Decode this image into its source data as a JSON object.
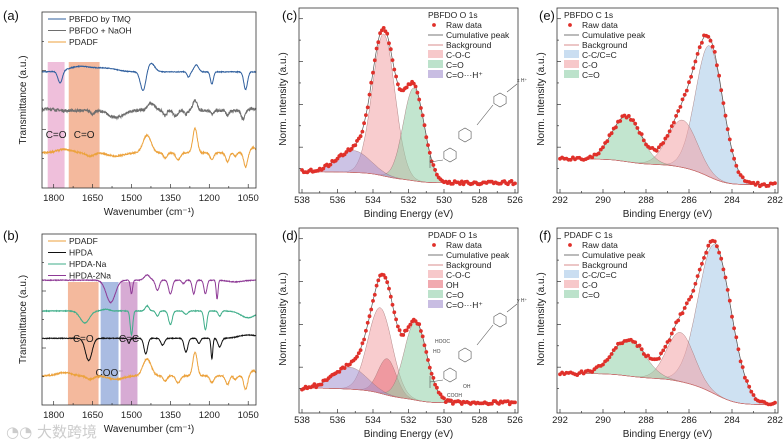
{
  "watermark": "大数跨境",
  "chart_data": [
    {
      "panel_label": "(a)",
      "type": "line",
      "xlabel": "Wavenumber (cm⁻¹)",
      "ylabel": "Transmittance (a.u.)",
      "xlim": [
        1845,
        1020
      ],
      "xticks": [
        1800,
        1650,
        1500,
        1350,
        1200,
        1050
      ],
      "ylim": [
        0,
        1
      ],
      "legend": "top-left",
      "bands": [
        {
          "label": "C=O",
          "from": 1823,
          "to": 1758,
          "color": "#e9a9cf"
        },
        {
          "label": "C=O",
          "from": 1742,
          "to": 1623,
          "color": "#f0a27c"
        }
      ],
      "series": [
        {
          "name": "PBFDO by TMQ",
          "color": "#2f5f9e",
          "baseline": 0.66,
          "noise": 0.002,
          "features": [
            [
              1775,
              0.07,
              12
            ],
            [
              1700,
              -0.03,
              60
            ],
            [
              1600,
              -0.02,
              60
            ],
            [
              1455,
              0.11,
              15
            ],
            [
              1425,
              -0.05,
              20
            ],
            [
              1280,
              0.03,
              8
            ],
            [
              1250,
              -0.04,
              12
            ],
            [
              1190,
              0.07,
              8
            ],
            [
              1060,
              0.1,
              10
            ]
          ]
        },
        {
          "name": "PBFDO + NaOH",
          "color": "#6e6e6e",
          "baseline": 0.44,
          "noise": 0.008,
          "features": [
            [
              1820,
              -0.01,
              30
            ],
            [
              1650,
              0.02,
              10
            ],
            [
              1560,
              0.04,
              40
            ],
            [
              1425,
              -0.04,
              20
            ],
            [
              1370,
              0.03,
              8
            ],
            [
              1330,
              0.03,
              12
            ],
            [
              1290,
              0.02,
              10
            ],
            [
              1255,
              -0.06,
              12
            ],
            [
              1190,
              0.02,
              8
            ],
            [
              1130,
              0.03,
              8
            ],
            [
              1070,
              0.05,
              10
            ],
            [
              1030,
              -0.01,
              20
            ]
          ]
        },
        {
          "name": "PDADF",
          "color": "#eca23c",
          "baseline": 0.2,
          "noise": 0.004,
          "features": [
            [
              1760,
              -0.02,
              40
            ],
            [
              1660,
              0.02,
              20
            ],
            [
              1560,
              0.02,
              40
            ],
            [
              1440,
              -0.1,
              22
            ],
            [
              1370,
              0.03,
              10
            ],
            [
              1320,
              0.04,
              12
            ],
            [
              1255,
              -0.14,
              12
            ],
            [
              1190,
              0.04,
              10
            ],
            [
              1130,
              0.05,
              10
            ],
            [
              1100,
              0.02,
              8
            ],
            [
              1060,
              0.08,
              10
            ],
            [
              1030,
              -0.03,
              15
            ]
          ]
        }
      ]
    },
    {
      "panel_label": "(b)",
      "type": "line",
      "xlabel": "Wavenumber (cm⁻¹)",
      "ylabel": "Transmittance (a.u.)",
      "xlim": [
        1845,
        1020
      ],
      "xticks": [
        1800,
        1650,
        1500,
        1350,
        1200,
        1050
      ],
      "ylim": [
        0,
        1
      ],
      "legend": "top-left",
      "bands": [
        {
          "label": "C=O",
          "from": 1745,
          "to": 1627,
          "color": "#f0a27c"
        },
        {
          "label": "COO⁻",
          "from": 1619,
          "to": 1550,
          "color": "#8ea5d8"
        },
        {
          "label": "C=C",
          "from": 1542,
          "to": 1477,
          "color": "#c98fc5"
        }
      ],
      "series": [
        {
          "name": "PDADF",
          "color": "#eca23c",
          "baseline": 0.17,
          "noise": 0.004,
          "features": [
            [
              1760,
              -0.02,
              40
            ],
            [
              1660,
              0.02,
              20
            ],
            [
              1560,
              0.02,
              40
            ],
            [
              1440,
              -0.1,
              22
            ],
            [
              1370,
              0.03,
              10
            ],
            [
              1320,
              0.04,
              12
            ],
            [
              1255,
              -0.14,
              12
            ],
            [
              1190,
              0.04,
              10
            ],
            [
              1130,
              0.05,
              10
            ],
            [
              1100,
              0.02,
              8
            ],
            [
              1060,
              0.08,
              10
            ],
            [
              1030,
              -0.03,
              15
            ]
          ]
        },
        {
          "name": "HPDA",
          "color": "#111111",
          "baseline": 0.39,
          "noise": 0.002,
          "features": [
            [
              1665,
              0.13,
              18
            ],
            [
              1510,
              0.03,
              6
            ],
            [
              1445,
              0.09,
              10
            ],
            [
              1380,
              0.04,
              10
            ],
            [
              1290,
              0.08,
              10
            ],
            [
              1240,
              0.03,
              8
            ],
            [
              1190,
              0.12,
              5
            ],
            [
              1160,
              0.05,
              10
            ],
            [
              1050,
              -0.02,
              50
            ]
          ]
        },
        {
          "name": "HPDA-Na",
          "color": "#3fae8a",
          "baseline": 0.55,
          "noise": 0.002,
          "features": [
            [
              1680,
              0.07,
              25
            ],
            [
              1600,
              -0.01,
              20
            ],
            [
              1500,
              0.14,
              7
            ],
            [
              1440,
              -0.03,
              10
            ],
            [
              1400,
              0.03,
              8
            ],
            [
              1350,
              0.08,
              10
            ],
            [
              1290,
              0.02,
              10
            ],
            [
              1215,
              0.11,
              8
            ],
            [
              1160,
              0.03,
              8
            ],
            [
              1050,
              0.04,
              40
            ]
          ]
        },
        {
          "name": "HPDA-2Na",
          "color": "#8e3a96",
          "baseline": 0.73,
          "noise": 0.002,
          "features": [
            [
              1580,
              0.13,
              25
            ],
            [
              1500,
              0.08,
              6
            ],
            [
              1440,
              -0.03,
              15
            ],
            [
              1400,
              0.06,
              10
            ],
            [
              1350,
              0.08,
              10
            ],
            [
              1300,
              0.02,
              8
            ],
            [
              1260,
              0.08,
              8
            ],
            [
              1215,
              0.08,
              8
            ],
            [
              1170,
              0.11,
              5
            ],
            [
              1100,
              0.01,
              40
            ]
          ]
        }
      ]
    },
    {
      "panel_label": "(c)",
      "type": "area",
      "title": "PBFDO O 1s",
      "xlabel": "Binding Energy (eV)",
      "ylabel": "Norm. Intensity (a.u.)",
      "xlim": [
        538,
        526
      ],
      "xticks": [
        538,
        536,
        534,
        532,
        530,
        528,
        526
      ],
      "ylim": [
        0,
        1
      ],
      "legend": "top-right",
      "raw_label": "Raw data",
      "cumulative_label": "Cumulative peak",
      "background_label": "Background",
      "background": {
        "low_be": 0.04,
        "high_be": 0.1
      },
      "components": [
        {
          "name": "C-O-C",
          "center": 533.4,
          "fwhm": 1.5,
          "height": 0.78,
          "color": "#f2a3a6"
        },
        {
          "name": "C=O",
          "center": 531.7,
          "fwhm": 1.4,
          "height": 0.51,
          "color": "#8fcfa8"
        },
        {
          "name": "C=O···H⁺",
          "center": 535.1,
          "fwhm": 2.2,
          "height": 0.12,
          "color": "#a391cf"
        }
      ],
      "structure_labels": [
        "x H⁺"
      ]
    },
    {
      "panel_label": "(d)",
      "type": "area",
      "title": "PDADF O 1s",
      "xlabel": "Binding Energy (eV)",
      "ylabel": "Norm. Intensity (a.u.)",
      "xlim": [
        538,
        526
      ],
      "xticks": [
        538,
        536,
        534,
        532,
        530,
        528,
        526
      ],
      "ylim": [
        0,
        1
      ],
      "legend": "top-right",
      "raw_label": "Raw data",
      "cumulative_label": "Cumulative peak",
      "background_label": "Background",
      "background": {
        "low_be": 0.04,
        "high_be": 0.12
      },
      "components": [
        {
          "name": "C-O-C",
          "center": 533.6,
          "fwhm": 1.6,
          "height": 0.47,
          "color": "#f2a3a6"
        },
        {
          "name": "OH",
          "center": 533.2,
          "fwhm": 1.2,
          "height": 0.2,
          "color": "#e8707a"
        },
        {
          "name": "C=O",
          "center": 531.6,
          "fwhm": 1.5,
          "height": 0.43,
          "color": "#8fcfa8"
        },
        {
          "name": "C=O···H⁺",
          "center": 535.3,
          "fwhm": 2.2,
          "height": 0.12,
          "color": "#a391cf"
        }
      ],
      "structure_labels": [
        "HOOC",
        "HO",
        "OH",
        "COOH",
        "y H⁺"
      ]
    },
    {
      "panel_label": "(e)",
      "type": "area",
      "title": "PBFDO C 1s",
      "xlabel": "Binding Energy (eV)",
      "ylabel": "Norm. Intensity (a.u.)",
      "xlim": [
        292,
        282
      ],
      "xticks": [
        292,
        290,
        288,
        286,
        284,
        282
      ],
      "ylim": [
        0,
        1
      ],
      "legend": "top-left",
      "raw_label": "Raw data",
      "cumulative_label": "Cumulative peak",
      "background_label": "Background",
      "background": {
        "low_be": 0.03,
        "high_be": 0.17
      },
      "components": [
        {
          "name": "C-C/C=C",
          "center": 285.05,
          "fwhm": 1.5,
          "height": 0.72,
          "color": "#a6c8e8"
        },
        {
          "name": "C-O",
          "center": 286.3,
          "fwhm": 1.6,
          "height": 0.26,
          "color": "#f2a3a6"
        },
        {
          "name": "C=O",
          "center": 288.9,
          "fwhm": 1.6,
          "height": 0.25,
          "color": "#8fcfa8"
        }
      ]
    },
    {
      "panel_label": "(f)",
      "type": "area",
      "title": "PDADF C 1s",
      "xlabel": "Binding Energy (eV)",
      "ylabel": "Norm. Intensity (a.u.)",
      "xlim": [
        292,
        282
      ],
      "xticks": [
        292,
        290,
        288,
        286,
        284,
        282
      ],
      "ylim": [
        0,
        1
      ],
      "legend": "top-left",
      "raw_label": "Raw data",
      "cumulative_label": "Cumulative peak",
      "background_label": "Background",
      "background": {
        "low_be": 0.03,
        "high_be": 0.2
      },
      "components": [
        {
          "name": "C-C/C=C",
          "center": 284.8,
          "fwhm": 1.8,
          "height": 0.82,
          "color": "#a6c8e8"
        },
        {
          "name": "C-O",
          "center": 286.4,
          "fwhm": 1.5,
          "height": 0.27,
          "color": "#f2a3a6"
        },
        {
          "name": "C=O",
          "center": 288.8,
          "fwhm": 1.8,
          "height": 0.2,
          "color": "#8fcfa8"
        }
      ]
    }
  ]
}
